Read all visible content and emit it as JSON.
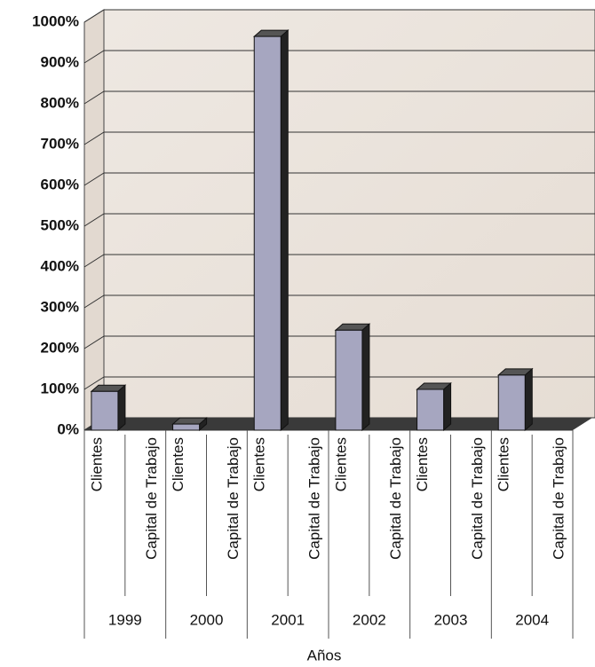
{
  "chart_data": {
    "type": "bar3d",
    "x_label": "Años",
    "groups": [
      "1999",
      "2000",
      "2001",
      "2002",
      "2003",
      "2004"
    ],
    "categories": [
      "Clientes",
      "Capital de Trabajo",
      "Clientes",
      "Capital de Trabajo",
      "Clientes",
      "Capital de Trabajo",
      "Clientes",
      "Capital de Trabajo",
      "Clientes",
      "Capital de Trabajo",
      "Clientes",
      "Capital de Trabajo"
    ],
    "values": [
      95,
      null,
      15,
      null,
      965,
      null,
      245,
      null,
      100,
      null,
      135,
      null
    ],
    "color": "#a6a6c0",
    "ylim": [
      0,
      1000
    ],
    "yticks": [
      {
        "value": 0,
        "label": "0%"
      },
      {
        "value": 100,
        "label": "100%"
      },
      {
        "value": 200,
        "label": "200%"
      },
      {
        "value": 300,
        "label": "300%"
      },
      {
        "value": 400,
        "label": "400%"
      },
      {
        "value": 500,
        "label": "500%"
      },
      {
        "value": 600,
        "label": "600%"
      },
      {
        "value": 700,
        "label": "700%"
      },
      {
        "value": 800,
        "label": "800%"
      },
      {
        "value": 900,
        "label": "900%"
      },
      {
        "value": 1000,
        "label": "1000%"
      }
    ],
    "grid": true
  }
}
